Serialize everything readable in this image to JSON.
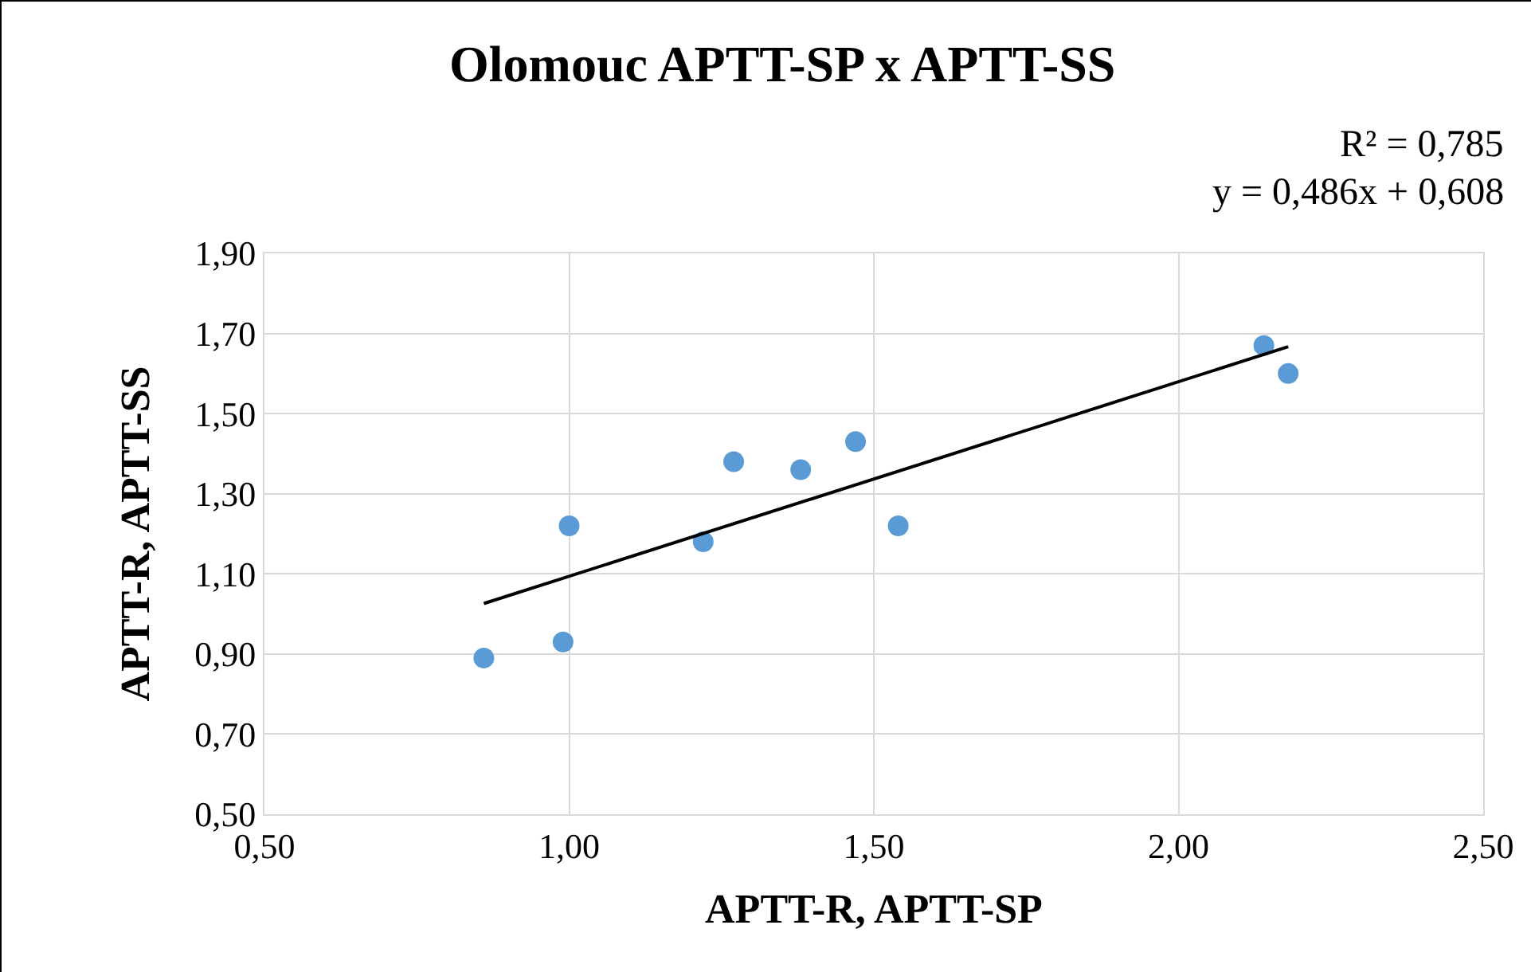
{
  "chart_data": {
    "type": "scatter",
    "title": "Olomouc APTT-SP x APTT-SS",
    "xlabel": "APTT-R, APTT-SP",
    "ylabel": "APTT-R, APTT-SS",
    "x": [
      0.86,
      0.99,
      1.0,
      1.22,
      1.27,
      1.38,
      1.47,
      1.54,
      2.14,
      2.18
    ],
    "series": [
      {
        "color": "#5b9bd5",
        "marker": "circle",
        "values": [
          0.89,
          0.93,
          1.22,
          1.18,
          1.38,
          1.36,
          1.43,
          1.22,
          1.67,
          1.6
        ]
      },
      {
        "type": "line",
        "color": "#000000",
        "marker": "none",
        "x": [
          0.86,
          2.18
        ],
        "values": [
          1.026,
          1.667
        ]
      }
    ],
    "annotations": [
      "R² = 0,785",
      "y = 0,486x + 0,608"
    ],
    "xlim": [
      0.5,
      2.5
    ],
    "xticks": [
      {
        "value": 0.5,
        "label": "0,50"
      },
      {
        "value": 1.0,
        "label": "1,00"
      },
      {
        "value": 1.5,
        "label": "1,50"
      },
      {
        "value": 2.0,
        "label": "2,00"
      },
      {
        "value": 2.5,
        "label": "2,50"
      }
    ],
    "ylim": [
      0.5,
      1.9
    ],
    "yticks": [
      {
        "value": 0.5,
        "label": "0,50"
      },
      {
        "value": 0.7,
        "label": "0,70"
      },
      {
        "value": 0.9,
        "label": "0,90"
      },
      {
        "value": 1.1,
        "label": "1,10"
      },
      {
        "value": 1.3,
        "label": "1,30"
      },
      {
        "value": 1.5,
        "label": "1,50"
      },
      {
        "value": 1.7,
        "label": "1,70"
      },
      {
        "value": 1.9,
        "label": "1,90"
      }
    ],
    "grid": true
  }
}
